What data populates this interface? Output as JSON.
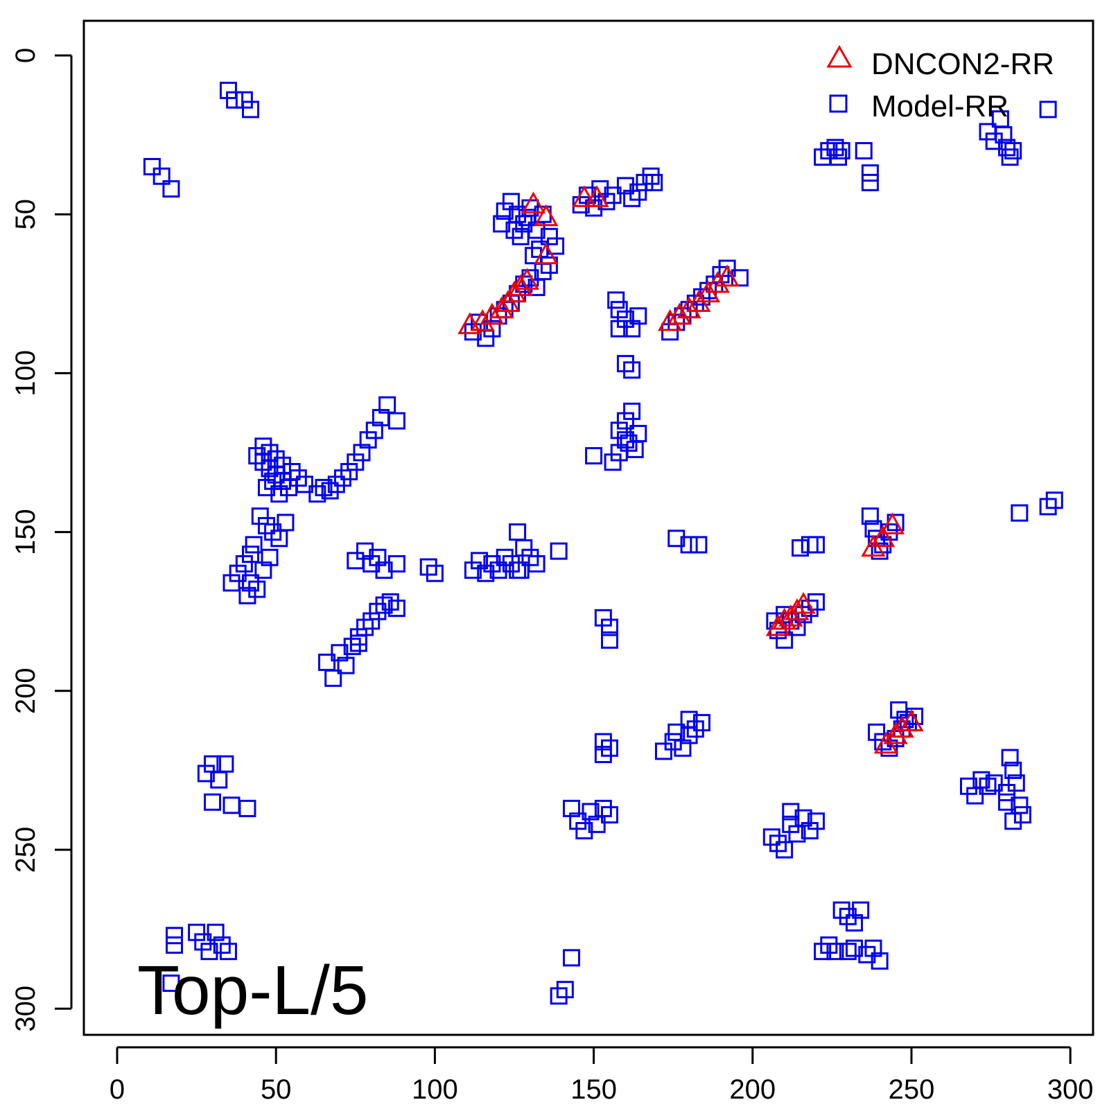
{
  "chart_data": {
    "type": "scatter",
    "title": "",
    "xlabel": "",
    "ylabel": "",
    "xlim": [
      0,
      300
    ],
    "ylim": [
      0,
      300
    ],
    "y_inverted": true,
    "grid": false,
    "legend_position": "top-right",
    "x_ticks": [
      "0",
      "50",
      "100",
      "150",
      "200",
      "250",
      "300"
    ],
    "y_ticks": [
      "0",
      "50",
      "100",
      "150",
      "200",
      "250",
      "300"
    ],
    "annotation": "Top-L/5",
    "series": [
      {
        "name": "Model-RR",
        "marker": "square",
        "color": "#0000ee",
        "points": [
          [
            35,
            11
          ],
          [
            37,
            14
          ],
          [
            40,
            14
          ],
          [
            42,
            17
          ],
          [
            11,
            35
          ],
          [
            14,
            38
          ],
          [
            17,
            42
          ],
          [
            222,
            32
          ],
          [
            224,
            30
          ],
          [
            226,
            29
          ],
          [
            227,
            32
          ],
          [
            228,
            30
          ],
          [
            235,
            30
          ],
          [
            237,
            37
          ],
          [
            237,
            40
          ],
          [
            274,
            24
          ],
          [
            276,
            27
          ],
          [
            278,
            20
          ],
          [
            279,
            25
          ],
          [
            280,
            29
          ],
          [
            281,
            32
          ],
          [
            282,
            30
          ],
          [
            293,
            17
          ],
          [
            124,
            46
          ],
          [
            126,
            50
          ],
          [
            128,
            53
          ],
          [
            130,
            48
          ],
          [
            132,
            55
          ],
          [
            134,
            50
          ],
          [
            136,
            57
          ],
          [
            138,
            60
          ],
          [
            122,
            49
          ],
          [
            121,
            53
          ],
          [
            125,
            55
          ],
          [
            127,
            57
          ],
          [
            129,
            51
          ],
          [
            131,
            63
          ],
          [
            133,
            61
          ],
          [
            146,
            47
          ],
          [
            148,
            44
          ],
          [
            150,
            48
          ],
          [
            152,
            42
          ],
          [
            154,
            46
          ],
          [
            156,
            44
          ],
          [
            160,
            41
          ],
          [
            162,
            45
          ],
          [
            164,
            43
          ],
          [
            166,
            40
          ],
          [
            168,
            38
          ],
          [
            169,
            40
          ],
          [
            112,
            87
          ],
          [
            114,
            84
          ],
          [
            116,
            89
          ],
          [
            118,
            86
          ],
          [
            120,
            82
          ],
          [
            122,
            80
          ],
          [
            124,
            78
          ],
          [
            126,
            75
          ],
          [
            128,
            72
          ],
          [
            130,
            70
          ],
          [
            132,
            73
          ],
          [
            134,
            68
          ],
          [
            136,
            66
          ],
          [
            157,
            77
          ],
          [
            158,
            80
          ],
          [
            160,
            83
          ],
          [
            162,
            86
          ],
          [
            164,
            82
          ],
          [
            158,
            86
          ],
          [
            160,
            97
          ],
          [
            162,
            99
          ],
          [
            174,
            87
          ],
          [
            176,
            84
          ],
          [
            178,
            82
          ],
          [
            180,
            80
          ],
          [
            182,
            78
          ],
          [
            184,
            76
          ],
          [
            186,
            74
          ],
          [
            188,
            72
          ],
          [
            190,
            69
          ],
          [
            192,
            67
          ],
          [
            196,
            70
          ],
          [
            85,
            110
          ],
          [
            83,
            114
          ],
          [
            81,
            118
          ],
          [
            79,
            121
          ],
          [
            77,
            125
          ],
          [
            75,
            128
          ],
          [
            73,
            131
          ],
          [
            71,
            133
          ],
          [
            69,
            135
          ],
          [
            67,
            137
          ],
          [
            65,
            136
          ],
          [
            63,
            138
          ],
          [
            88,
            115
          ],
          [
            44,
            126
          ],
          [
            46,
            128
          ],
          [
            48,
            130
          ],
          [
            50,
            132
          ],
          [
            52,
            134
          ],
          [
            54,
            136
          ],
          [
            46,
            123
          ],
          [
            48,
            125
          ],
          [
            50,
            127
          ],
          [
            52,
            129
          ],
          [
            55,
            131
          ],
          [
            57,
            133
          ],
          [
            59,
            135
          ],
          [
            47,
            136
          ],
          [
            49,
            134
          ],
          [
            51,
            138
          ],
          [
            45,
            145
          ],
          [
            47,
            148
          ],
          [
            49,
            150
          ],
          [
            51,
            152
          ],
          [
            42,
            157
          ],
          [
            40,
            160
          ],
          [
            38,
            163
          ],
          [
            36,
            166
          ],
          [
            42,
            166
          ],
          [
            44,
            168
          ],
          [
            46,
            162
          ],
          [
            48,
            158
          ],
          [
            53,
            147
          ],
          [
            43,
            154
          ],
          [
            41,
            170
          ],
          [
            162,
            112
          ],
          [
            160,
            115
          ],
          [
            158,
            118
          ],
          [
            160,
            121
          ],
          [
            163,
            124
          ],
          [
            158,
            125
          ],
          [
            156,
            128
          ],
          [
            150,
            126
          ],
          [
            164,
            119
          ],
          [
            161,
            122
          ],
          [
            126,
            150
          ],
          [
            128,
            155
          ],
          [
            130,
            158
          ],
          [
            132,
            160
          ],
          [
            127,
            162
          ],
          [
            124,
            160
          ],
          [
            122,
            158
          ],
          [
            120,
            162
          ],
          [
            118,
            160
          ],
          [
            116,
            163
          ],
          [
            114,
            159
          ],
          [
            112,
            162
          ],
          [
            139,
            156
          ],
          [
            126,
            162
          ],
          [
            75,
            159
          ],
          [
            78,
            156
          ],
          [
            80,
            160
          ],
          [
            82,
            158
          ],
          [
            84,
            162
          ],
          [
            88,
            160
          ],
          [
            98,
            161
          ],
          [
            100,
            163
          ],
          [
            66,
            191
          ],
          [
            68,
            196
          ],
          [
            70,
            188
          ],
          [
            72,
            192
          ],
          [
            74,
            186
          ],
          [
            76,
            183
          ],
          [
            78,
            180
          ],
          [
            80,
            178
          ],
          [
            82,
            175
          ],
          [
            84,
            173
          ],
          [
            86,
            172
          ],
          [
            88,
            174
          ],
          [
            76,
            185
          ],
          [
            153,
            177
          ],
          [
            155,
            180
          ],
          [
            155,
            184
          ],
          [
            153,
            216
          ],
          [
            155,
            218
          ],
          [
            153,
            220
          ],
          [
            176,
            152
          ],
          [
            180,
            154
          ],
          [
            183,
            154
          ],
          [
            215,
            155
          ],
          [
            218,
            154
          ],
          [
            220,
            154
          ],
          [
            237,
            145
          ],
          [
            238,
            149
          ],
          [
            239,
            152
          ],
          [
            241,
            154
          ],
          [
            243,
            150
          ],
          [
            245,
            147
          ],
          [
            240,
            156
          ],
          [
            208,
            181
          ],
          [
            210,
            176
          ],
          [
            212,
            178
          ],
          [
            214,
            180
          ],
          [
            216,
            176
          ],
          [
            218,
            174
          ],
          [
            220,
            172
          ],
          [
            210,
            184
          ],
          [
            207,
            178
          ],
          [
            239,
            213
          ],
          [
            241,
            216
          ],
          [
            243,
            218
          ],
          [
            245,
            215
          ],
          [
            247,
            212
          ],
          [
            249,
            210
          ],
          [
            251,
            208
          ],
          [
            246,
            206
          ],
          [
            248,
            209
          ],
          [
            172,
            219
          ],
          [
            175,
            216
          ],
          [
            178,
            218
          ],
          [
            180,
            214
          ],
          [
            182,
            212
          ],
          [
            184,
            210
          ],
          [
            176,
            213
          ],
          [
            180,
            209
          ],
          [
            281,
            221
          ],
          [
            282,
            225
          ],
          [
            283,
            229
          ],
          [
            280,
            232
          ],
          [
            284,
            236
          ],
          [
            285,
            239
          ],
          [
            282,
            241
          ],
          [
            268,
            230
          ],
          [
            270,
            233
          ],
          [
            272,
            228
          ],
          [
            274,
            230
          ],
          [
            276,
            229
          ],
          [
            280,
            235
          ],
          [
            293,
            142
          ],
          [
            295,
            140
          ],
          [
            284,
            144
          ],
          [
            28,
            226
          ],
          [
            30,
            223
          ],
          [
            32,
            228
          ],
          [
            34,
            223
          ],
          [
            30,
            235
          ],
          [
            36,
            236
          ],
          [
            41,
            237
          ],
          [
            143,
            237
          ],
          [
            145,
            241
          ],
          [
            147,
            244
          ],
          [
            149,
            238
          ],
          [
            151,
            242
          ],
          [
            153,
            237
          ],
          [
            155,
            239
          ],
          [
            206,
            246
          ],
          [
            208,
            248
          ],
          [
            210,
            250
          ],
          [
            212,
            242
          ],
          [
            214,
            245
          ],
          [
            216,
            240
          ],
          [
            218,
            244
          ],
          [
            220,
            241
          ],
          [
            212,
            238
          ],
          [
            228,
            269
          ],
          [
            230,
            271
          ],
          [
            232,
            273
          ],
          [
            234,
            269
          ],
          [
            236,
            283
          ],
          [
            238,
            281
          ],
          [
            240,
            285
          ],
          [
            222,
            282
          ],
          [
            224,
            280
          ],
          [
            226,
            282
          ],
          [
            230,
            282
          ],
          [
            232,
            281
          ],
          [
            18,
            277
          ],
          [
            18,
            280
          ],
          [
            25,
            276
          ],
          [
            27,
            279
          ],
          [
            29,
            282
          ],
          [
            31,
            276
          ],
          [
            33,
            280
          ],
          [
            35,
            282
          ],
          [
            17,
            292
          ],
          [
            139,
            296
          ],
          [
            141,
            294
          ],
          [
            143,
            284
          ]
        ]
      },
      {
        "name": "DNCON2-RR",
        "marker": "triangle",
        "color": "#ee0000",
        "points": [
          [
            131,
            47
          ],
          [
            135,
            51
          ],
          [
            147,
            45
          ],
          [
            151,
            45
          ],
          [
            135,
            63
          ],
          [
            111,
            85
          ],
          [
            115,
            84
          ],
          [
            118,
            82
          ],
          [
            121,
            80
          ],
          [
            123,
            78
          ],
          [
            125,
            75
          ],
          [
            127,
            73
          ],
          [
            129,
            71
          ],
          [
            174,
            84
          ],
          [
            177,
            82
          ],
          [
            180,
            80
          ],
          [
            183,
            78
          ],
          [
            186,
            75
          ],
          [
            189,
            72
          ],
          [
            192,
            70
          ],
          [
            238,
            155
          ],
          [
            241,
            152
          ],
          [
            244,
            148
          ],
          [
            208,
            180
          ],
          [
            210,
            178
          ],
          [
            212,
            177
          ],
          [
            214,
            175
          ],
          [
            216,
            173
          ],
          [
            242,
            217
          ],
          [
            245,
            214
          ],
          [
            247,
            212
          ],
          [
            250,
            210
          ]
        ]
      }
    ]
  }
}
